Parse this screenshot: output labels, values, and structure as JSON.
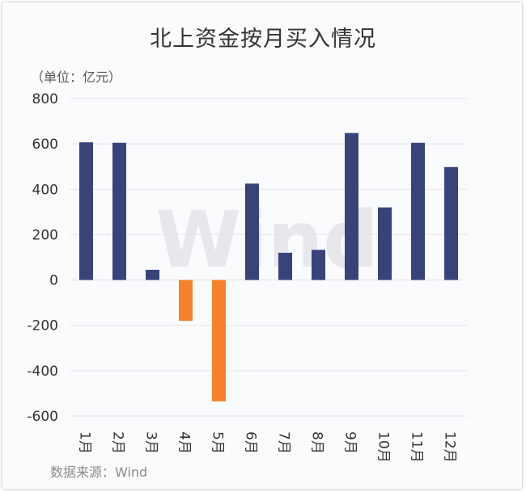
{
  "chart_data": {
    "type": "bar",
    "title": "北上资金按月买入情况",
    "unit_note": "（单位：亿元）",
    "source_note": "数据来源：Wind",
    "watermark": "Wind",
    "categories": [
      "1月",
      "2月",
      "3月",
      "4月",
      "5月",
      "6月",
      "7月",
      "8月",
      "9月",
      "10月",
      "11月",
      "12月"
    ],
    "values": [
      607,
      605,
      45,
      -180,
      -535,
      425,
      120,
      133,
      648,
      320,
      605,
      498
    ],
    "ylim": [
      -600,
      800
    ],
    "yticks": [
      800,
      600,
      400,
      200,
      0,
      -200,
      -400,
      -600
    ],
    "grid": true,
    "colors": {
      "positive": "#36447a",
      "negative": "#f5822a"
    }
  }
}
